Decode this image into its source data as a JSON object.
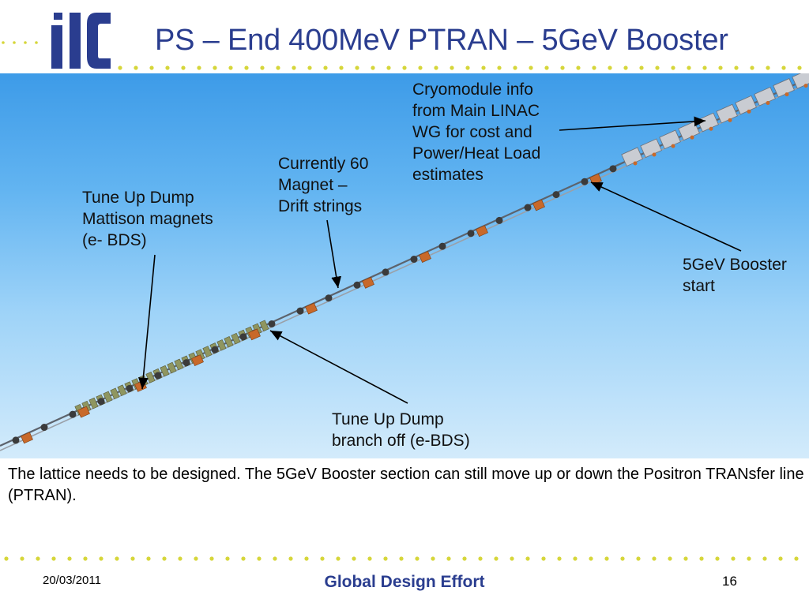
{
  "header": {
    "logo_text": "ilc",
    "title": "PS – End 400MeV PTRAN – 5GeV Booster"
  },
  "diagram": {
    "callouts": {
      "cryomodule": "Cryomodule info\nfrom Main LINAC\nWG for cost and\nPower/Heat Load\nestimates",
      "magnet_drift": "Currently 60\nMagnet –\nDrift strings",
      "tune_up_mattison": "Tune Up Dump\nMattison magnets\n(e- BDS)",
      "booster_start": "5GeV Booster\nstart",
      "tune_up_branch": "Tune Up Dump\nbranch off (e-BDS)"
    }
  },
  "caption": "The lattice needs to be designed. The 5GeV Booster section can still move up or down the Positron TRANsfer line (PTRAN).",
  "footer": {
    "date": "20/03/2011",
    "center": "Global Design Effort",
    "page": "16"
  },
  "colors": {
    "title": "#2a3d8f",
    "dots": "#d6d63a",
    "logo": "#2a3d8f",
    "magnet": "#c8692a",
    "beamline": "#8a8f98"
  }
}
